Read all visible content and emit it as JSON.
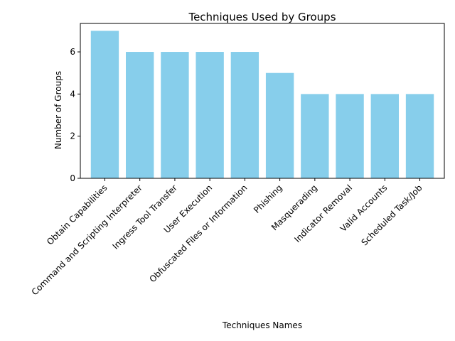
{
  "chart_data": {
    "type": "bar",
    "title": "Techniques Used by Groups",
    "xlabel": "Techniques Names",
    "ylabel": "Number of Groups",
    "categories": [
      "Obtain Capabilities",
      "Command and Scripting Interpreter",
      "Ingress Tool Transfer",
      "User Execution",
      "Obfuscated Files or Information",
      "Phishing",
      "Masquerading",
      "Indicator Removal",
      "Valid Accounts",
      "Scheduled Task/Job"
    ],
    "values": [
      7,
      6,
      6,
      6,
      6,
      5,
      4,
      4,
      4,
      4
    ],
    "ylim": [
      0,
      7.35
    ],
    "yticks": [
      0,
      2,
      4,
      6
    ],
    "bar_color": "#87CEEB",
    "grid": false,
    "legend": "none"
  }
}
